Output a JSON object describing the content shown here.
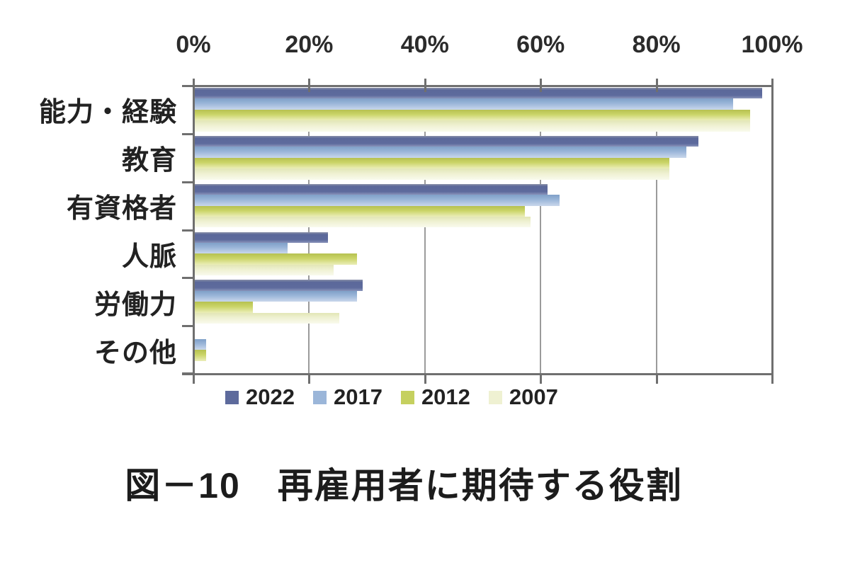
{
  "figure": {
    "caption": "図－10　再雇用者に期待する役割"
  },
  "chart_data": {
    "type": "bar",
    "orientation": "horizontal",
    "title": "図－10　再雇用者に期待する役割",
    "categories": [
      "能力・経験",
      "教育",
      "有資格者",
      "人脈",
      "労働力",
      "その他"
    ],
    "series": [
      {
        "name": "2022",
        "color": "#5d6a9c",
        "values": [
          98,
          87,
          61,
          23,
          29,
          0
        ]
      },
      {
        "name": "2017",
        "color": "#9bb6d9",
        "values": [
          93,
          85,
          63,
          16,
          28,
          2
        ]
      },
      {
        "name": "2012",
        "color": "#c5d05f",
        "values": [
          96,
          82,
          57,
          28,
          10,
          2
        ]
      },
      {
        "name": "2007",
        "color": "#eff1d2",
        "values": [
          96,
          82,
          58,
          24,
          25,
          0
        ]
      }
    ],
    "x_axis": {
      "tick_labels": [
        "0%",
        "20%",
        "40%",
        "60%",
        "80%",
        "100%"
      ],
      "tick_values": [
        0,
        20,
        40,
        60,
        80,
        100
      ],
      "min": 0,
      "max": 100
    },
    "grid": true,
    "legend_position": "bottom"
  }
}
